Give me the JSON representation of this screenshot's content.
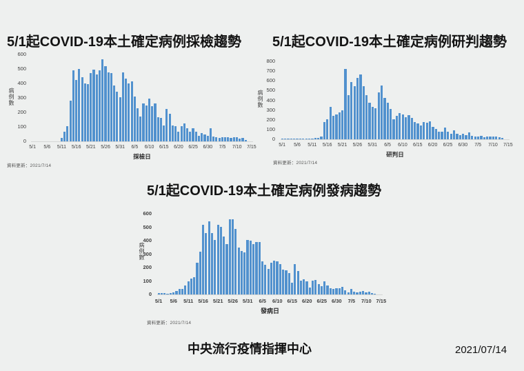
{
  "page": {
    "background": "#eef0ef",
    "bar_color": "#5191ce",
    "org_label": "中央流行疫情指揮中心",
    "date_label": "2021/07/14"
  },
  "chart_data": [
    {
      "type": "bar",
      "title": "5/1起COVID-19本土確定病例採檢趨勢",
      "ylabel": "病例數",
      "xlabel": "採檢日",
      "note": "資料更新：2021/7/14",
      "ylim": [
        0,
        600
      ],
      "ytick_step": 100,
      "xtick_every": 5,
      "grid": false,
      "legend": false,
      "categories": [
        "5/1",
        "5/2",
        "5/3",
        "5/4",
        "5/5",
        "5/6",
        "5/7",
        "5/8",
        "5/9",
        "5/10",
        "5/11",
        "5/12",
        "5/13",
        "5/14",
        "5/15",
        "5/16",
        "5/17",
        "5/18",
        "5/19",
        "5/20",
        "5/21",
        "5/22",
        "5/23",
        "5/24",
        "5/25",
        "5/26",
        "5/27",
        "5/28",
        "5/29",
        "5/30",
        "5/31",
        "6/1",
        "6/2",
        "6/3",
        "6/4",
        "6/5",
        "6/6",
        "6/7",
        "6/8",
        "6/9",
        "6/10",
        "6/11",
        "6/12",
        "6/13",
        "6/14",
        "6/15",
        "6/16",
        "6/17",
        "6/18",
        "6/19",
        "6/20",
        "6/21",
        "6/22",
        "6/23",
        "6/24",
        "6/25",
        "6/26",
        "6/27",
        "6/28",
        "6/29",
        "6/30",
        "7/1",
        "7/2",
        "7/3",
        "7/4",
        "7/5",
        "7/6",
        "7/7",
        "7/8",
        "7/9",
        "7/10",
        "7/11",
        "7/12",
        "7/13",
        "7/14",
        "7/15"
      ],
      "values": [
        0,
        0,
        0,
        0,
        0,
        0,
        0,
        0,
        0,
        0,
        25,
        65,
        105,
        280,
        490,
        425,
        500,
        445,
        400,
        395,
        470,
        495,
        460,
        490,
        565,
        520,
        475,
        470,
        385,
        345,
        305,
        475,
        435,
        400,
        415,
        310,
        230,
        170,
        260,
        250,
        295,
        245,
        260,
        165,
        160,
        110,
        225,
        190,
        110,
        105,
        65,
        105,
        125,
        90,
        65,
        90,
        65,
        40,
        55,
        50,
        40,
        90,
        35,
        30,
        25,
        30,
        30,
        30,
        25,
        30,
        30,
        20,
        25,
        10,
        0,
        0
      ]
    },
    {
      "type": "bar",
      "title": "5/1起COVID-19本土確定病例研判趨勢",
      "ylabel": "病例數",
      "xlabel": "研判日",
      "note": "資料更新：2021/7/14",
      "ylim": [
        0,
        800
      ],
      "ytick_step": 100,
      "xtick_every": 5,
      "grid": false,
      "legend": false,
      "categories": [
        "5/1",
        "5/2",
        "5/3",
        "5/4",
        "5/5",
        "5/6",
        "5/7",
        "5/8",
        "5/9",
        "5/10",
        "5/11",
        "5/12",
        "5/13",
        "5/14",
        "5/15",
        "5/16",
        "5/17",
        "5/18",
        "5/19",
        "5/20",
        "5/21",
        "5/22",
        "5/23",
        "5/24",
        "5/25",
        "5/26",
        "5/27",
        "5/28",
        "5/29",
        "5/30",
        "5/31",
        "6/1",
        "6/2",
        "6/3",
        "6/4",
        "6/5",
        "6/6",
        "6/7",
        "6/8",
        "6/9",
        "6/10",
        "6/11",
        "6/12",
        "6/13",
        "6/14",
        "6/15",
        "6/16",
        "6/17",
        "6/18",
        "6/19",
        "6/20",
        "6/21",
        "6/22",
        "6/23",
        "6/24",
        "6/25",
        "6/26",
        "6/27",
        "6/28",
        "6/29",
        "6/30",
        "7/1",
        "7/2",
        "7/3",
        "7/4",
        "7/5",
        "7/6",
        "7/7",
        "7/8",
        "7/9",
        "7/10",
        "7/11",
        "7/12",
        "7/13",
        "7/14",
        "7/15"
      ],
      "values": [
        2,
        2,
        3,
        3,
        3,
        3,
        5,
        5,
        5,
        8,
        10,
        12,
        15,
        30,
        180,
        205,
        335,
        240,
        255,
        275,
        300,
        720,
        455,
        590,
        545,
        630,
        665,
        545,
        450,
        375,
        335,
        320,
        485,
        555,
        425,
        375,
        310,
        205,
        240,
        270,
        255,
        225,
        250,
        220,
        180,
        160,
        145,
        175,
        170,
        185,
        130,
        105,
        80,
        80,
        120,
        80,
        60,
        90,
        55,
        45,
        55,
        45,
        70,
        35,
        25,
        30,
        35,
        20,
        30,
        25,
        25,
        30,
        20,
        15,
        0,
        0
      ]
    },
    {
      "type": "bar",
      "title": "5/1起COVID-19本土確定病例發病趨勢",
      "ylabel": "病例數",
      "xlabel": "發病日",
      "note": "資料更新：2021/7/14",
      "ylim": [
        0,
        600
      ],
      "ytick_step": 100,
      "xtick_every": 5,
      "grid": false,
      "legend": false,
      "categories": [
        "5/1",
        "5/2",
        "5/3",
        "5/4",
        "5/5",
        "5/6",
        "5/7",
        "5/8",
        "5/9",
        "5/10",
        "5/11",
        "5/12",
        "5/13",
        "5/14",
        "5/15",
        "5/16",
        "5/17",
        "5/18",
        "5/19",
        "5/20",
        "5/21",
        "5/22",
        "5/23",
        "5/24",
        "5/25",
        "5/26",
        "5/27",
        "5/28",
        "5/29",
        "5/30",
        "5/31",
        "6/1",
        "6/2",
        "6/3",
        "6/4",
        "6/5",
        "6/6",
        "6/7",
        "6/8",
        "6/9",
        "6/10",
        "6/11",
        "6/12",
        "6/13",
        "6/14",
        "6/15",
        "6/16",
        "6/17",
        "6/18",
        "6/19",
        "6/20",
        "6/21",
        "6/22",
        "6/23",
        "6/24",
        "6/25",
        "6/26",
        "6/27",
        "6/28",
        "6/29",
        "6/30",
        "7/1",
        "7/2",
        "7/3",
        "7/4",
        "7/5",
        "7/6",
        "7/7",
        "7/8",
        "7/9",
        "7/10",
        "7/11",
        "7/12",
        "7/13",
        "7/14",
        "7/15"
      ],
      "values": [
        10,
        8,
        8,
        5,
        8,
        15,
        25,
        40,
        40,
        65,
        100,
        120,
        130,
        235,
        320,
        520,
        455,
        545,
        455,
        405,
        520,
        505,
        430,
        375,
        560,
        560,
        485,
        350,
        325,
        315,
        405,
        400,
        375,
        390,
        390,
        245,
        220,
        190,
        235,
        250,
        245,
        225,
        185,
        180,
        160,
        85,
        225,
        175,
        105,
        115,
        95,
        50,
        105,
        110,
        75,
        60,
        100,
        65,
        45,
        40,
        45,
        45,
        55,
        30,
        15,
        40,
        20,
        15,
        20,
        25,
        15,
        20,
        10,
        5,
        0,
        0
      ]
    }
  ]
}
